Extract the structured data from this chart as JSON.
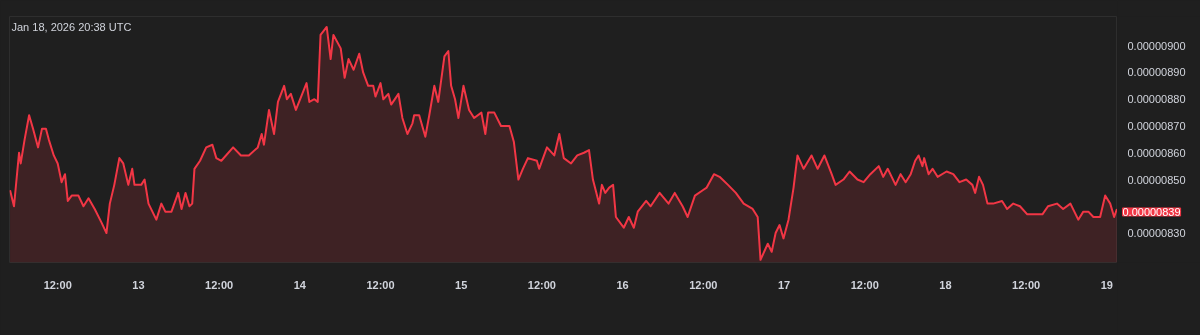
{
  "chart_data": {
    "type": "area",
    "grid": false,
    "annotations": [
      "Jan 18, 2026 20:38 UTC",
      "0.00000839"
    ],
    "xlim": [
      "2026-01-12T04:50",
      "2026-01-19T01:35"
    ],
    "ylim": [
      8.19e-06,
      9.109e-06
    ],
    "xticks": [
      {
        "value": "2026-01-12T12:00",
        "label": "12:00"
      },
      {
        "value": "2026-01-13",
        "label": "13"
      },
      {
        "value": "2026-01-13T12:00",
        "label": "12:00"
      },
      {
        "value": "2026-01-14",
        "label": "14"
      },
      {
        "value": "2026-01-14T12:00",
        "label": "12:00"
      },
      {
        "value": "2026-01-15",
        "label": "15"
      },
      {
        "value": "2026-01-15T12:00",
        "label": "12:00"
      },
      {
        "value": "2026-01-16",
        "label": "16"
      },
      {
        "value": "2026-01-16T12:00",
        "label": "12:00"
      },
      {
        "value": "2026-01-17",
        "label": "17"
      },
      {
        "value": "2026-01-17T12:00",
        "label": "12:00"
      },
      {
        "value": "2026-01-18",
        "label": "18"
      },
      {
        "value": "2026-01-18T12:00",
        "label": "12:00"
      },
      {
        "value": "2026-01-19",
        "label": "19"
      }
    ],
    "yticks": [
      {
        "value": 8.3e-06,
        "label": "0.00000830"
      },
      {
        "value": 8.5e-06,
        "label": "0.00000850"
      },
      {
        "value": 8.6e-06,
        "label": "0.00000860"
      },
      {
        "value": 8.7e-06,
        "label": "0.00000870"
      },
      {
        "value": 8.8e-06,
        "label": "0.00000880"
      },
      {
        "value": 8.9e-06,
        "label": "0.00000890"
      },
      {
        "value": 9e-06,
        "label": "0.00000900"
      }
    ],
    "x": [
      "2026-01-12T04:55",
      "2026-01-12T05:30",
      "2026-01-12T06:15",
      "2026-01-12T06:30",
      "2026-01-12T07:05",
      "2026-01-12T07:45",
      "2026-01-12T08:20",
      "2026-01-12T09:05",
      "2026-01-12T09:40",
      "2026-01-12T10:15",
      "2026-01-12T10:40",
      "2026-01-12T11:25",
      "2026-01-12T12:00",
      "2026-01-12T12:35",
      "2026-01-12T13:05",
      "2026-01-12T13:30",
      "2026-01-12T14:05",
      "2026-01-12T15:05",
      "2026-01-12T15:50",
      "2026-01-12T16:35",
      "2026-01-12T17:30",
      "2026-01-12T18:30",
      "2026-01-12T19:15",
      "2026-01-12T19:45",
      "2026-01-12T20:25",
      "2026-01-12T21:10",
      "2026-01-12T21:45",
      "2026-01-12T22:30",
      "2026-01-12T23:05",
      "2026-01-12T23:25",
      "2026-01-13T00:25",
      "2026-01-13T00:55",
      "2026-01-13T01:30",
      "2026-01-13T02:40",
      "2026-01-13T03:25",
      "2026-01-13T04:00",
      "2026-01-13T04:55",
      "2026-01-13T05:55",
      "2026-01-13T06:25",
      "2026-01-13T07:00",
      "2026-01-13T07:35",
      "2026-01-13T08:00",
      "2026-01-13T08:20",
      "2026-01-13T09:10",
      "2026-01-13T10:05",
      "2026-01-13T11:00",
      "2026-01-13T11:35",
      "2026-01-13T12:20",
      "2026-01-13T14:05",
      "2026-01-13T15:15",
      "2026-01-13T16:25",
      "2026-01-13T17:45",
      "2026-01-13T18:20",
      "2026-01-13T18:40",
      "2026-01-13T19:25",
      "2026-01-13T20:10",
      "2026-01-13T20:45",
      "2026-01-13T21:40",
      "2026-01-13T22:05",
      "2026-01-13T22:40",
      "2026-01-13T23:25",
      "2026-01-14T01:00",
      "2026-01-14T01:25",
      "2026-01-14T02:10",
      "2026-01-14T02:40",
      "2026-01-14T03:05",
      "2026-01-14T04:00",
      "2026-01-14T04:35",
      "2026-01-14T05:00",
      "2026-01-14T06:05",
      "2026-01-14T06:40",
      "2026-01-14T07:15",
      "2026-01-14T08:00",
      "2026-01-14T08:50",
      "2026-01-14T09:25",
      "2026-01-14T10:10",
      "2026-01-14T10:55",
      "2026-01-14T11:15",
      "2026-01-14T12:00",
      "2026-01-14T12:25",
      "2026-01-14T13:10",
      "2026-01-14T13:35",
      "2026-01-14T14:40",
      "2026-01-14T15:15",
      "2026-01-14T16:00",
      "2026-01-14T16:45",
      "2026-01-14T17:00",
      "2026-01-14T17:45",
      "2026-01-14T18:40",
      "2026-01-14T19:15",
      "2026-01-14T20:00",
      "2026-01-14T20:35",
      "2026-01-14T21:30",
      "2026-01-14T22:05",
      "2026-01-14T22:30",
      "2026-01-14T23:05",
      "2026-01-14T23:35",
      "2026-01-15T00:20",
      "2026-01-15T01:10",
      "2026-01-15T01:55",
      "2026-01-15T03:00",
      "2026-01-15T03:35",
      "2026-01-15T04:00",
      "2026-01-15T04:55",
      "2026-01-15T05:55",
      "2026-01-15T07:10",
      "2026-01-15T07:50",
      "2026-01-15T08:30",
      "2026-01-15T09:10",
      "2026-01-15T09:55",
      "2026-01-15T11:15",
      "2026-01-15T11:35",
      "2026-01-15T12:45",
      "2026-01-15T13:50",
      "2026-01-15T14:35",
      "2026-01-15T15:15",
      "2026-01-15T16:20",
      "2026-01-15T17:15",
      "2026-01-15T18:15",
      "2026-01-15T19:00",
      "2026-01-15T19:35",
      "2026-01-15T20:30",
      "2026-01-15T20:55",
      "2026-01-15T21:25",
      "2026-01-15T22:00",
      "2026-01-15T22:35",
      "2026-01-15T23:00",
      "2026-01-16T00:10",
      "2026-01-16T00:55",
      "2026-01-16T01:40",
      "2026-01-16T02:15",
      "2026-01-16T03:30",
      "2026-01-16T04:10",
      "2026-01-16T05:30",
      "2026-01-16T06:50",
      "2026-01-16T07:45",
      "2026-01-16T08:55",
      "2026-01-16T09:40",
      "2026-01-16T10:45",
      "2026-01-16T11:55",
      "2026-01-16T12:30",
      "2026-01-16T13:35",
      "2026-01-16T14:25",
      "2026-01-16T15:40",
      "2026-01-16T16:50",
      "2026-01-16T18:00",
      "2026-01-16T19:20",
      "2026-01-16T20:05",
      "2026-01-16T20:30",
      "2026-01-16T21:35",
      "2026-01-16T22:10",
      "2026-01-16T22:45",
      "2026-01-16T23:20",
      "2026-01-16T23:55",
      "2026-01-17T00:40",
      "2026-01-17T01:25",
      "2026-01-17T02:00",
      "2026-01-17T02:55",
      "2026-01-17T04:05",
      "2026-01-17T05:00",
      "2026-01-17T06:00",
      "2026-01-17T07:05",
      "2026-01-17T07:40",
      "2026-01-17T08:50",
      "2026-01-17T09:45",
      "2026-01-17T10:55",
      "2026-01-17T11:50",
      "2026-01-17T12:50",
      "2026-01-17T14:05",
      "2026-01-17T14:45",
      "2026-01-17T15:25",
      "2026-01-17T16:35",
      "2026-01-17T17:20",
      "2026-01-17T18:05",
      "2026-01-17T18:50",
      "2026-01-17T19:30",
      "2026-01-17T20:00",
      "2026-01-17T20:35",
      "2026-01-17T20:50",
      "2026-01-17T21:30",
      "2026-01-17T22:05",
      "2026-01-17T22:50",
      "2026-01-18T00:10",
      "2026-01-18T01:10",
      "2026-01-18T02:05",
      "2026-01-18T03:05",
      "2026-01-18T04:00",
      "2026-01-18T04:25",
      "2026-01-18T05:00",
      "2026-01-18T05:35",
      "2026-01-18T06:15",
      "2026-01-18T07:05",
      "2026-01-18T08:25",
      "2026-01-18T09:10",
      "2026-01-18T10:05",
      "2026-01-18T11:05",
      "2026-01-18T12:10",
      "2026-01-18T13:20",
      "2026-01-18T14:25",
      "2026-01-18T15:15",
      "2026-01-18T16:35",
      "2026-01-18T17:30",
      "2026-01-18T18:35",
      "2026-01-18T19:45",
      "2026-01-18T20:30",
      "2026-01-18T21:15",
      "2026-01-18T22:00",
      "2026-01-18T23:00",
      "2026-01-18T23:45",
      "2026-01-19T00:30",
      "2026-01-19T01:05",
      "2026-01-19T01:30"
    ],
    "series": [
      {
        "color": "#f23645",
        "values": [
          8.46e-06,
          8.4e-06,
          8.6e-06,
          8.56e-06,
          8.65e-06,
          8.74e-06,
          8.69e-06,
          8.62e-06,
          8.69e-06,
          8.69e-06,
          8.65e-06,
          8.59e-06,
          8.56e-06,
          8.49e-06,
          8.52e-06,
          8.42e-06,
          8.44e-06,
          8.44e-06,
          8.4e-06,
          8.43e-06,
          8.39e-06,
          8.34e-06,
          8.3e-06,
          8.41e-06,
          8.48e-06,
          8.58e-06,
          8.56e-06,
          8.48e-06,
          8.54e-06,
          8.48e-06,
          8.48e-06,
          8.5e-06,
          8.41e-06,
          8.35e-06,
          8.41e-06,
          8.38e-06,
          8.38e-06,
          8.45e-06,
          8.39e-06,
          8.45e-06,
          8.4e-06,
          8.41e-06,
          8.54e-06,
          8.57e-06,
          8.62e-06,
          8.63e-06,
          8.58e-06,
          8.57e-06,
          8.62e-06,
          8.59e-06,
          8.59e-06,
          8.62e-06,
          8.67e-06,
          8.63e-06,
          8.76e-06,
          8.67e-06,
          8.79e-06,
          8.85e-06,
          8.8e-06,
          8.82e-06,
          8.76e-06,
          8.86e-06,
          8.79e-06,
          8.8e-06,
          8.79e-06,
          9.04e-06,
          9.07e-06,
          8.95e-06,
          9.04e-06,
          8.99e-06,
          8.88e-06,
          8.95e-06,
          8.91e-06,
          8.97e-06,
          8.9e-06,
          8.85e-06,
          8.85e-06,
          8.81e-06,
          8.86e-06,
          8.8e-06,
          8.82e-06,
          8.78e-06,
          8.82e-06,
          8.73e-06,
          8.67e-06,
          8.71e-06,
          8.74e-06,
          8.74e-06,
          8.66e-06,
          8.74e-06,
          8.85e-06,
          8.79e-06,
          8.96e-06,
          8.98e-06,
          8.85e-06,
          8.8e-06,
          8.73e-06,
          8.85e-06,
          8.76e-06,
          8.73e-06,
          8.75e-06,
          8.67e-06,
          8.75e-06,
          8.75e-06,
          8.7e-06,
          8.7e-06,
          8.64e-06,
          8.5e-06,
          8.54e-06,
          8.58e-06,
          8.57e-06,
          8.54e-06,
          8.62e-06,
          8.59e-06,
          8.67e-06,
          8.58e-06,
          8.56e-06,
          8.59e-06,
          8.6e-06,
          8.61e-06,
          8.5e-06,
          8.41e-06,
          8.48e-06,
          8.45e-06,
          8.47e-06,
          8.48e-06,
          8.36e-06,
          8.32e-06,
          8.36e-06,
          8.32e-06,
          8.38e-06,
          8.42e-06,
          8.4e-06,
          8.45e-06,
          8.41e-06,
          8.45e-06,
          8.4e-06,
          8.36e-06,
          8.44e-06,
          8.46e-06,
          8.47e-06,
          8.52e-06,
          8.51e-06,
          8.48e-06,
          8.45e-06,
          8.41e-06,
          8.39e-06,
          8.36e-06,
          8.2e-06,
          8.26e-06,
          8.23e-06,
          8.3e-06,
          8.33e-06,
          8.28e-06,
          8.35e-06,
          8.47e-06,
          8.59e-06,
          8.54e-06,
          8.59e-06,
          8.54e-06,
          8.59e-06,
          8.52e-06,
          8.48e-06,
          8.5e-06,
          8.53e-06,
          8.5e-06,
          8.49e-06,
          8.52e-06,
          8.55e-06,
          8.51e-06,
          8.54e-06,
          8.48e-06,
          8.52e-06,
          8.49e-06,
          8.52e-06,
          8.57e-06,
          8.59e-06,
          8.55e-06,
          8.58e-06,
          8.52e-06,
          8.54e-06,
          8.51e-06,
          8.53e-06,
          8.52e-06,
          8.49e-06,
          8.5e-06,
          8.48e-06,
          8.45e-06,
          8.51e-06,
          8.48e-06,
          8.41e-06,
          8.41e-06,
          8.42e-06,
          8.39e-06,
          8.41e-06,
          8.4e-06,
          8.37e-06,
          8.37e-06,
          8.37e-06,
          8.4e-06,
          8.41e-06,
          8.39e-06,
          8.41e-06,
          8.35e-06,
          8.38e-06,
          8.38e-06,
          8.36e-06,
          8.36e-06,
          8.44e-06,
          8.41e-06,
          8.36e-06,
          8.39e-06
        ]
      }
    ]
  }
}
